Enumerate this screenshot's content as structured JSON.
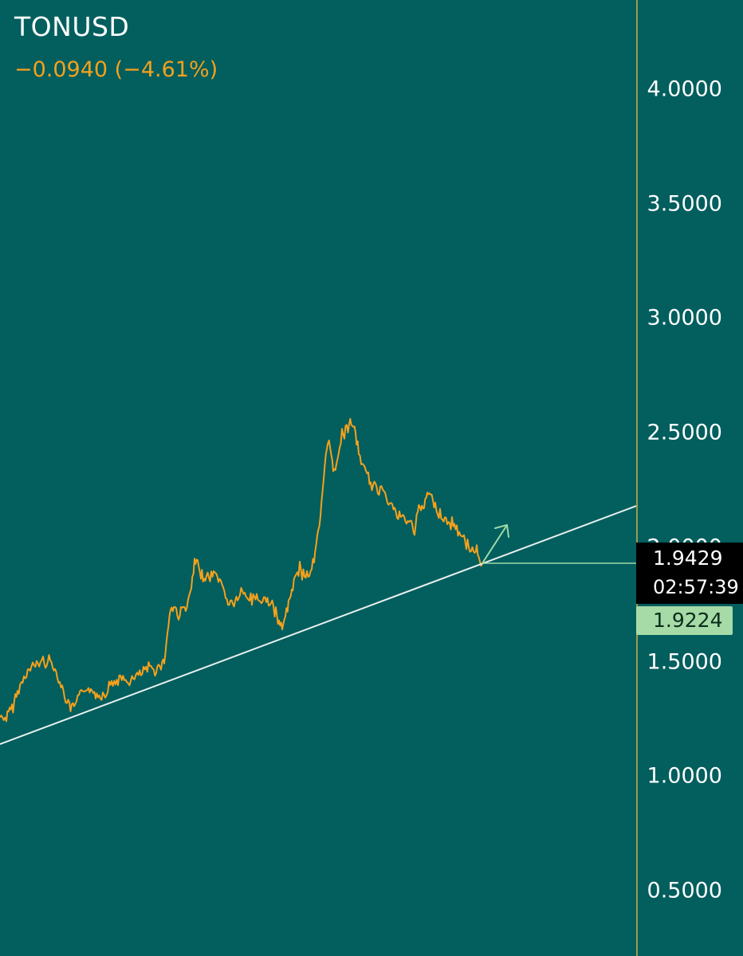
{
  "header": {
    "symbol": "TONUSD",
    "change": "−0.0940 (−4.61%)"
  },
  "price_axis": {
    "labels": [
      "4.0000",
      "3.5000",
      "3.0000",
      "2.5000",
      "2.0000",
      "1.5000",
      "1.0000",
      "0.5000"
    ]
  },
  "last_price": {
    "value": "1.9429",
    "countdown": "02:57:39"
  },
  "level": {
    "value": "1.9224"
  },
  "colors": {
    "background": "#035e5e",
    "price_line": "#f5a11c",
    "trendline": "#e8f0ee",
    "level_line": "#9ed9a6",
    "axis_divider": "#c9b24a",
    "change_text": "#f5a11c"
  },
  "chart_data": {
    "type": "line",
    "title": "TONUSD",
    "xlabel": "",
    "ylabel": "",
    "ylim": [
      0.3,
      4.25
    ],
    "y_ticks": [
      4.0,
      3.5,
      3.0,
      2.5,
      2.0,
      1.5,
      1.0,
      0.5
    ],
    "series": [
      {
        "name": "TONUSD",
        "points": [
          [
            0,
            1.26
          ],
          [
            8,
            1.25
          ],
          [
            15,
            1.3
          ],
          [
            22,
            1.36
          ],
          [
            30,
            1.43
          ],
          [
            38,
            1.47
          ],
          [
            46,
            1.49
          ],
          [
            54,
            1.5
          ],
          [
            60,
            1.51
          ],
          [
            66,
            1.49
          ],
          [
            72,
            1.44
          ],
          [
            78,
            1.38
          ],
          [
            84,
            1.33
          ],
          [
            90,
            1.29
          ],
          [
            96,
            1.32
          ],
          [
            102,
            1.36
          ],
          [
            108,
            1.39
          ],
          [
            114,
            1.37
          ],
          [
            120,
            1.36
          ],
          [
            126,
            1.35
          ],
          [
            132,
            1.37
          ],
          [
            140,
            1.41
          ],
          [
            148,
            1.42
          ],
          [
            156,
            1.42
          ],
          [
            164,
            1.41
          ],
          [
            172,
            1.44
          ],
          [
            180,
            1.45
          ],
          [
            188,
            1.47
          ],
          [
            196,
            1.47
          ],
          [
            202,
            1.49
          ],
          [
            206,
            1.5
          ],
          [
            210,
            1.63
          ],
          [
            214,
            1.73
          ],
          [
            218,
            1.74
          ],
          [
            224,
            1.71
          ],
          [
            230,
            1.73
          ],
          [
            236,
            1.75
          ],
          [
            240,
            1.82
          ],
          [
            244,
            1.93
          ],
          [
            248,
            1.92
          ],
          [
            252,
            1.89
          ],
          [
            256,
            1.88
          ],
          [
            262,
            1.86
          ],
          [
            268,
            1.89
          ],
          [
            274,
            1.87
          ],
          [
            280,
            1.82
          ],
          [
            286,
            1.76
          ],
          [
            292,
            1.75
          ],
          [
            298,
            1.78
          ],
          [
            304,
            1.8
          ],
          [
            310,
            1.78
          ],
          [
            316,
            1.77
          ],
          [
            322,
            1.79
          ],
          [
            328,
            1.76
          ],
          [
            334,
            1.77
          ],
          [
            340,
            1.75
          ],
          [
            346,
            1.71
          ],
          [
            350,
            1.67
          ],
          [
            354,
            1.64
          ],
          [
            358,
            1.71
          ],
          [
            362,
            1.74
          ],
          [
            366,
            1.83
          ],
          [
            370,
            1.86
          ],
          [
            376,
            1.9
          ],
          [
            382,
            1.88
          ],
          [
            388,
            1.89
          ],
          [
            394,
            1.93
          ],
          [
            398,
            2.04
          ],
          [
            402,
            2.12
          ],
          [
            406,
            2.3
          ],
          [
            410,
            2.46
          ],
          [
            414,
            2.44
          ],
          [
            418,
            2.34
          ],
          [
            422,
            2.37
          ],
          [
            426,
            2.45
          ],
          [
            432,
            2.51
          ],
          [
            438,
            2.53
          ],
          [
            442,
            2.55
          ],
          [
            446,
            2.48
          ],
          [
            450,
            2.41
          ],
          [
            456,
            2.35
          ],
          [
            462,
            2.3
          ],
          [
            468,
            2.26
          ],
          [
            474,
            2.24
          ],
          [
            480,
            2.27
          ],
          [
            486,
            2.22
          ],
          [
            492,
            2.18
          ],
          [
            498,
            2.14
          ],
          [
            504,
            2.13
          ],
          [
            510,
            2.11
          ],
          [
            516,
            2.1
          ],
          [
            520,
            2.08
          ],
          [
            524,
            2.14
          ],
          [
            528,
            2.18
          ],
          [
            532,
            2.17
          ],
          [
            536,
            2.24
          ],
          [
            540,
            2.22
          ],
          [
            546,
            2.18
          ],
          [
            552,
            2.14
          ],
          [
            558,
            2.12
          ],
          [
            564,
            2.1
          ],
          [
            570,
            2.09
          ],
          [
            576,
            2.07
          ],
          [
            582,
            2.03
          ],
          [
            588,
            2.01
          ],
          [
            594,
            1.98
          ],
          [
            598,
            1.99
          ],
          [
            602,
            1.96
          ],
          [
            605,
            1.93
          ]
        ]
      }
    ],
    "trendline": [
      [
        0,
        1.14
      ],
      [
        798,
        2.18
      ]
    ],
    "level_line": 1.9224,
    "last_price": 1.9429
  }
}
